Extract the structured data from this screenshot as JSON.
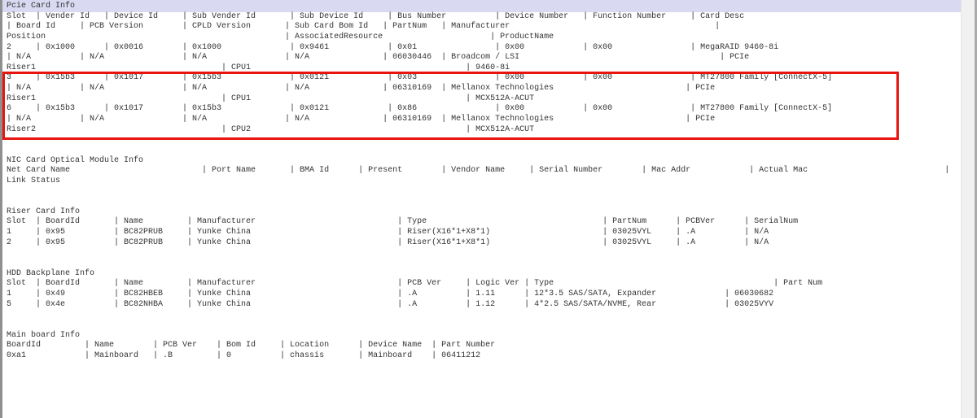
{
  "colors": {
    "selection_highlight_bg": "#d9d9f2",
    "annotation_box_red": "#e8140e",
    "text": "#333333",
    "scrollbar_thumb": "#8d8d8d",
    "scrollbar_track": "#f1f1f1"
  },
  "sections": {
    "pcie": {
      "title": "Pcie Card Info",
      "header": [
        "Slot  | Vender Id   | Device Id     | Sub Vender Id       | Sub Device Id     | Bus Number          | Device Number   | Function Number     | Card Desc",
        "| Board Id     | PCB Version        | CPLD Version       | Sub Card Bom Id   | PartNum   | Manufacturer                                          |",
        "Position                                                 | AssociatedResource                      | ProductName"
      ],
      "slot2": [
        "2     | 0x1000      | 0x0016        | 0x1000              | 0x9461            | 0x01                | 0x00            | 0x00                | MegaRAID 9460-8i",
        "| N/A          | N/A                | N/A                | N/A               | 06030446  | Broadcom / LSI                                         | PCIe",
        "Riser1                                      | CPU1                                            | 9460-8i"
      ],
      "slot3": [
        "3     | 0x15b3      | 0x1017        | 0x15b3              | 0x0121            | 0x03                | 0x00            | 0x00                | MT27800 Family [ConnectX-5]",
        "| N/A          | N/A                | N/A                | N/A               | 06310169  | Mellanox Technologies                           | PCIe",
        "Riser1                                      | CPU1                                            | MCX512A-ACUT"
      ],
      "slot6": [
        "6     | 0x15b3      | 0x1017        | 0x15b3              | 0x0121            | 0x86                | 0x00            | 0x00                | MT27800 Family [ConnectX-5]",
        "| N/A          | N/A                | N/A                | N/A               | 06310169  | Mellanox Technologies                           | PCIe",
        "Riser2                                      | CPU2                                            | MCX512A-ACUT"
      ]
    },
    "nic": {
      "title": "NIC Card Optical Module Info",
      "header": [
        "Net Card Name                           | Port Name       | BMA Id      | Present        | Vendor Name     | Serial Number        | Mac Addr            | Actual Mac                            |",
        "Link Status"
      ]
    },
    "riser": {
      "title": "Riser Card Info",
      "header": "Slot  | BoardId       | Name         | Manufacturer                             | Type                                    | PartNum      | PCBVer      | SerialNum",
      "rows": [
        "1     | 0x95          | BC82PRUB     | Yunke China                              | Riser(X16*1+X8*1)                       | 03025VYL     | .A          | N/A",
        "2     | 0x95          | BC82PRUB     | Yunke China                              | Riser(X16*1+X8*1)                       | 03025VYL     | .A          | N/A"
      ]
    },
    "hdd": {
      "title": "HDD Backplane Info",
      "header": "Slot  | BoardId       | Name         | Manufacturer                             | PCB Ver     | Logic Ver | Type                                             | Part Num",
      "rows": [
        "1     | 0x49          | BC82HBEB     | Yunke China                              | .A          | 1.11      | 12*3.5 SAS/SATA, Expander              | 06030682",
        "5     | 0x4e          | BC82NHBA     | Yunke China                              | .A          | 1.12      | 4*2.5 SAS/SATA/NVME, Rear              | 03025VYV"
      ]
    },
    "mainboard": {
      "title": "Main board Info",
      "header": "BoardId         | Name        | PCB Ver    | Bom Id     | Location      | Device Name  | Part Number",
      "row": "0xa1            | Mainboard   | .B         | 0          | chassis       | Mainboard    | 06411212"
    }
  }
}
